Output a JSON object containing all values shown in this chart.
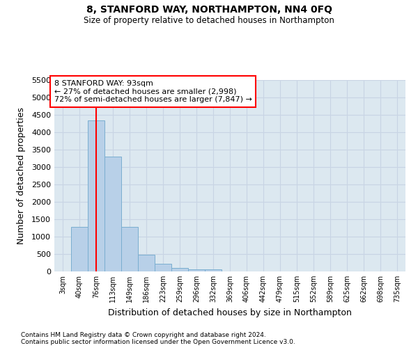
{
  "title": "8, STANFORD WAY, NORTHAMPTON, NN4 0FQ",
  "subtitle": "Size of property relative to detached houses in Northampton",
  "xlabel": "Distribution of detached houses by size in Northampton",
  "ylabel": "Number of detached properties",
  "footnote1": "Contains HM Land Registry data © Crown copyright and database right 2024.",
  "footnote2": "Contains public sector information licensed under the Open Government Licence v3.0.",
  "annotation_title": "8 STANFORD WAY: 93sqm",
  "annotation_line1": "← 27% of detached houses are smaller (2,998)",
  "annotation_line2": "72% of semi-detached houses are larger (7,847) →",
  "bin_labels": [
    "3sqm",
    "40sqm",
    "76sqm",
    "113sqm",
    "149sqm",
    "186sqm",
    "223sqm",
    "259sqm",
    "296sqm",
    "332sqm",
    "369sqm",
    "406sqm",
    "442sqm",
    "479sqm",
    "515sqm",
    "552sqm",
    "589sqm",
    "625sqm",
    "662sqm",
    "698sqm",
    "735sqm"
  ],
  "bar_values": [
    0,
    1280,
    4350,
    3300,
    1280,
    480,
    230,
    100,
    70,
    55,
    0,
    0,
    0,
    0,
    0,
    0,
    0,
    0,
    0,
    0,
    0
  ],
  "bar_color": "#b8d0e8",
  "bar_edge_color": "#7aaed0",
  "red_line_bin": 2,
  "ylim": [
    0,
    5500
  ],
  "yticks": [
    0,
    500,
    1000,
    1500,
    2000,
    2500,
    3000,
    3500,
    4000,
    4500,
    5000,
    5500
  ],
  "grid_color": "#c8d4e4",
  "background_color": "#dce8f0"
}
